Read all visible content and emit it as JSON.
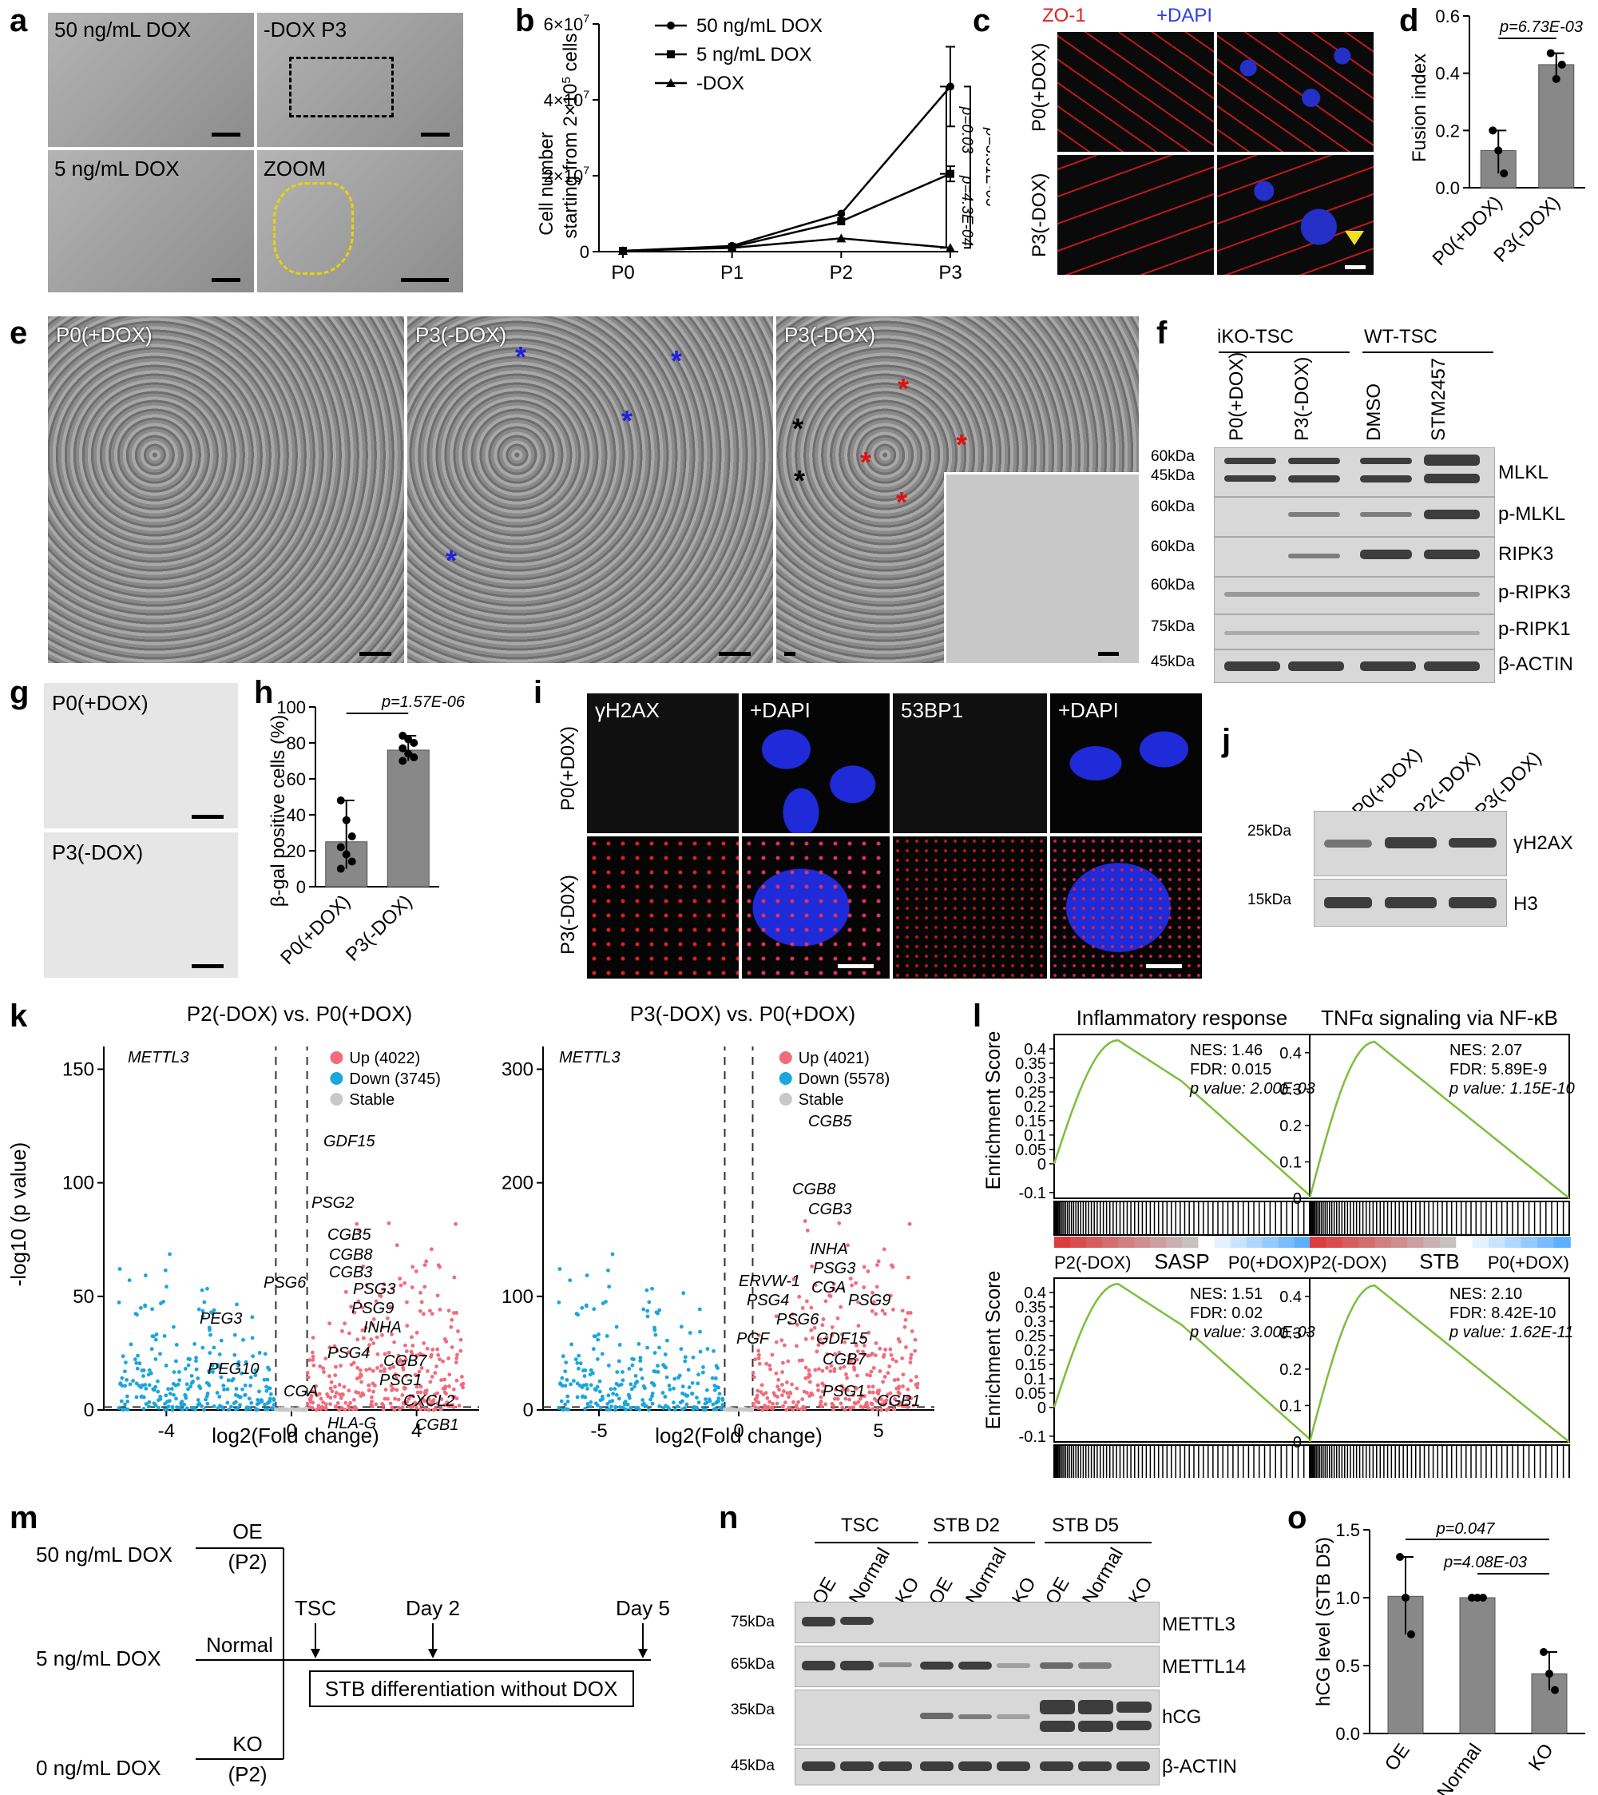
{
  "panels": {
    "a": {
      "letter": "a",
      "labels": [
        "50 ng/mL DOX",
        "-DOX P3",
        "5 ng/mL DOX",
        "ZOOM"
      ]
    },
    "b": {
      "letter": "b",
      "ylabel_1": "Cell number",
      "ylabel_2": "starting from 2×10",
      "ylabel_sup": "5",
      "ylabel_3": " cells",
      "legend": [
        "50 ng/mL DOX",
        "5 ng/mL DOX",
        "-DOX"
      ],
      "pvals": [
        "p=0.03",
        "p=4.3E-04",
        "p=3.31E-03"
      ]
    },
    "c": {
      "letter": "c",
      "headers": [
        "ZO-1",
        "+DAPI"
      ],
      "rows": [
        "P0(+DOX)",
        "P3(-DOX)"
      ]
    },
    "d": {
      "letter": "d",
      "ylabel": "Fusion index",
      "pval": "p=6.73E-03",
      "cats": [
        "P0(+DOX)",
        "P3(-DOX)"
      ]
    },
    "e": {
      "letter": "e",
      "labels": [
        "P0(+DOX)",
        "P3(-DOX)",
        "P3(-DOX)"
      ]
    },
    "f": {
      "letter": "f",
      "groups": [
        "iKO-TSC",
        "WT-TSC"
      ],
      "lanes": [
        "P0(+DOX)",
        "P3(-DOX)",
        "DMSO",
        "STM2457"
      ],
      "markers": [
        "60kDa",
        "45kDa",
        "60kDa",
        "60kDa",
        "60kDa",
        "75kDa",
        "45kDa"
      ],
      "proteins": [
        "MLKL",
        "p-MLKL",
        "RIPK3",
        "p-RIPK3",
        "p-RIPK1",
        "β-ACTIN"
      ]
    },
    "g": {
      "letter": "g",
      "labels": [
        "P0(+DOX)",
        "P3(-DOX)"
      ]
    },
    "h": {
      "letter": "h",
      "ylabel": "β-gal positive cells (%)",
      "pval": "p=1.57E-06",
      "cats": [
        "P0(+DOX)",
        "P3(-DOX)"
      ]
    },
    "i": {
      "letter": "i",
      "headers": [
        "γH2AX",
        "+DAPI",
        "53BP1",
        "+DAPI"
      ],
      "rows": [
        "P0(+D0X)",
        "P3(-D0X)"
      ]
    },
    "j": {
      "letter": "j",
      "lanes": [
        "P0(+DOX)",
        "P2(-DOX)",
        "P3(-DOX)"
      ],
      "markers": [
        "25kDa",
        "15kDa"
      ],
      "proteins": [
        "γH2AX",
        "H3"
      ]
    },
    "k": {
      "letter": "k",
      "title1": "P2(-DOX) vs. P0(+DOX)",
      "title2": "P3(-DOX) vs. P0(+DOX)",
      "xlabel": "log2(Fold change)",
      "ylabel": "-log10 (p value)",
      "legend1": [
        "Up (4022)",
        "Down (3745)",
        "Stable"
      ],
      "legend2": [
        "Up (4021)",
        "Down (5578)",
        "Stable"
      ],
      "genes1": [
        "METTL3",
        "GDF15",
        "PSG2",
        "CGB5",
        "CGB8",
        "CGB3",
        "PSG6",
        "PSG3",
        "PSG9",
        "INHA",
        "PEG3",
        "PEG10",
        "PSG4",
        "CGB7",
        "CGA",
        "PSG1",
        "CXCL2",
        "HLA-G",
        "CGB1"
      ],
      "genes2": [
        "METTL3",
        "CGB5",
        "CGB8",
        "CGB3",
        "INHA",
        "PSG3",
        "ERVW-1",
        "CGA",
        "PSG9",
        "PSG4",
        "PSG6",
        "GDF15",
        "PGF",
        "CGB7",
        "PSG1",
        "CGB1"
      ]
    },
    "l": {
      "letter": "l",
      "ylabel": "Enrichment Score",
      "plots": [
        {
          "title": "Inflammatory response",
          "nes": "NES: 1.46",
          "fdr": "FDR: 0.015",
          "p": "p value: 2.00E-03"
        },
        {
          "title": "TNFα signaling via NF-κB",
          "nes": "NES: 2.07",
          "fdr": "FDR: 5.89E-9",
          "p": "p value: 1.15E-10"
        },
        {
          "title": "SASP",
          "nes": "NES: 1.51",
          "fdr": "FDR: 0.02",
          "p": "p value: 3.00E-03"
        },
        {
          "title": "STB",
          "nes": "NES: 2.10",
          "fdr": "FDR: 8.42E-10",
          "p": "p value: 1.62E-11"
        }
      ],
      "xleft": "P2(-DOX)",
      "xright": "P0(+DOX)"
    },
    "m": {
      "letter": "m",
      "doses": [
        "50 ng/mL DOX",
        "5 ng/mL DOX",
        "0 ng/mL DOX"
      ],
      "oe": "OE",
      "oe_p": "(P2)",
      "normal": "Normal",
      "ko": "KO",
      "ko_p": "(P2)",
      "timepoints": [
        "TSC",
        "Day 2",
        "Day 5"
      ],
      "box": "STB differentiation without DOX"
    },
    "n": {
      "letter": "n",
      "groups": [
        "TSC",
        "STB D2",
        "STB D5"
      ],
      "lanes": [
        "OE",
        "Normal",
        "KO"
      ],
      "markers": [
        "75kDa",
        "65kDa",
        "35kDa",
        "45kDa"
      ],
      "proteins": [
        "METTL3",
        "METTL14",
        "hCG",
        "β-ACTIN"
      ]
    },
    "o": {
      "letter": "o",
      "ylabel": "hCG level (STB D5)",
      "pvals": [
        "p=0.047",
        "p=4.08E-03"
      ],
      "cats": [
        "OE",
        "Normal",
        "KO"
      ]
    }
  },
  "chart_data": [
    {
      "type": "line",
      "id": "b",
      "categories": [
        "P0",
        "P1",
        "P2",
        "P3"
      ],
      "ylim": [
        0,
        60000000
      ],
      "yticks": [
        "0",
        "2×10^7",
        "4×10^7",
        "6×10^7"
      ],
      "series": [
        {
          "name": "50 ng/mL DOX",
          "values": [
            200000,
            1500000,
            10000000,
            43500000
          ]
        },
        {
          "name": "5 ng/mL DOX",
          "values": [
            200000,
            1200000,
            8000000,
            20500000
          ]
        },
        {
          "name": "-DOX",
          "values": [
            200000,
            1000000,
            3500000,
            1000000
          ]
        }
      ]
    },
    {
      "type": "bar",
      "id": "d",
      "categories": [
        "P0(+DOX)",
        "P3(-DOX)"
      ],
      "values": [
        0.13,
        0.43
      ],
      "ylim": [
        0,
        0.6
      ],
      "yticks": [
        "0.0",
        "0.2",
        "0.4",
        "0.6"
      ],
      "points": [
        [
          0.2,
          0.13,
          0.05
        ],
        [
          0.47,
          0.38,
          0.43
        ]
      ]
    },
    {
      "type": "bar",
      "id": "h",
      "categories": [
        "P0(+DOX)",
        "P3(-DOX)"
      ],
      "values": [
        25,
        76
      ],
      "ylim": [
        0,
        100
      ],
      "yticks": [
        "0",
        "20",
        "40",
        "60",
        "80",
        "100"
      ],
      "points": [
        [
          48,
          37,
          28,
          22,
          18,
          14,
          10
        ],
        [
          84,
          82,
          80,
          77,
          74,
          72,
          70
        ]
      ]
    },
    {
      "type": "bar",
      "id": "o",
      "categories": [
        "OE",
        "Normal",
        "KO"
      ],
      "values": [
        1.01,
        1.0,
        0.44
      ],
      "ylim": [
        0,
        1.5
      ],
      "yticks": [
        "0.0",
        "0.5",
        "1.0",
        "1.5"
      ],
      "points": [
        [
          1.3,
          1.0,
          0.73
        ],
        [
          1.0,
          1.0,
          1.0
        ],
        [
          0.6,
          0.44,
          0.32
        ]
      ]
    },
    {
      "type": "scatter",
      "id": "k1",
      "xlim": [
        -6,
        6
      ],
      "ylim": [
        0,
        160
      ],
      "xticks": [
        "-4",
        "0",
        "4"
      ],
      "yticks": [
        "0",
        "50",
        "100",
        "150"
      ]
    },
    {
      "type": "scatter",
      "id": "k2",
      "xlim": [
        -7,
        7
      ],
      "ylim": [
        0,
        320
      ],
      "xticks": [
        "-5",
        "0",
        "5"
      ],
      "yticks": [
        "0",
        "100",
        "200",
        "300"
      ]
    }
  ]
}
